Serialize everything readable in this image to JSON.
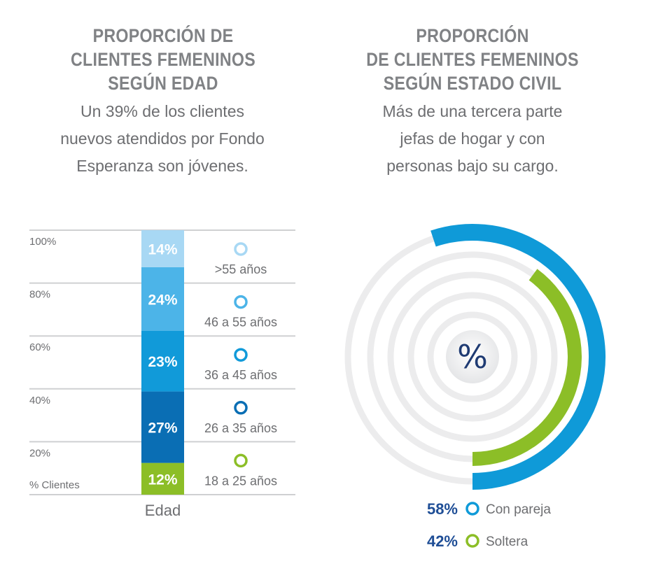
{
  "left": {
    "title_lines": [
      "PROPORCIÓN DE",
      "CLIENTES FEMENINOS",
      "SEGÚN EDAD"
    ],
    "subtitle_lines": [
      "Un 39% de los clientes",
      "nuevos atendidos por Fondo",
      "Esperanza son jóvenes."
    ]
  },
  "right": {
    "title_lines": [
      "PROPORCIÓN",
      "DE CLIENTES FEMENINOS",
      "SEGÚN ESTADO CIVIL"
    ],
    "subtitle_lines": [
      "Más de una tercera parte",
      "jefas de hogar y con",
      "personas bajo su cargo."
    ],
    "center_symbol": "%"
  },
  "chart_data": [
    {
      "type": "bar",
      "stacked": true,
      "xlabel": "Edad",
      "ylabel": "% Clientes",
      "ytick_labels": [
        "20%",
        "40%",
        "60%",
        "80%",
        "100%"
      ],
      "categories": [
        "18 a 25 años",
        "26 a 35 años",
        "36 a 45 años",
        "46 a 55 años",
        ">55 años"
      ],
      "values": [
        12,
        27,
        23,
        24,
        14
      ],
      "value_labels": [
        "12%",
        "27%",
        "23%",
        "24%",
        "14%"
      ],
      "colors": [
        "#8cbe27",
        "#0a6eb4",
        "#119ad9",
        "#4cb4e8",
        "#a8d8f4"
      ],
      "grid": true
    },
    {
      "type": "pie",
      "style": "concentric-arcs",
      "categories": [
        "Con pareja",
        "Soltera"
      ],
      "values": [
        58,
        42
      ],
      "value_labels": [
        "58%",
        "42%"
      ],
      "colors": [
        "#0f9ad8",
        "#8cbe27"
      ],
      "legend": "bottom"
    }
  ]
}
